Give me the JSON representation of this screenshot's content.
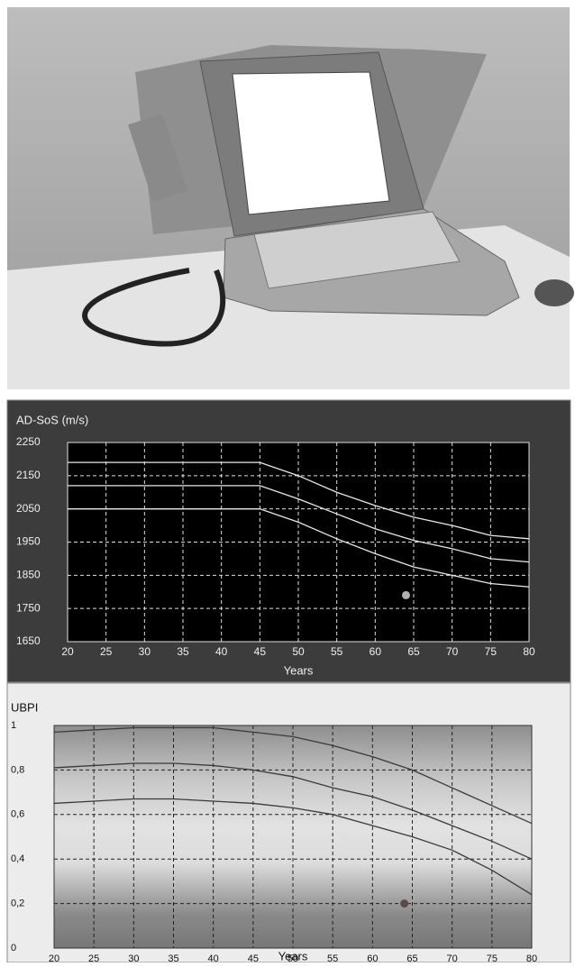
{
  "chart_data": [
    {
      "type": "line",
      "title": "AD-SoS (m/s)",
      "x_label": "Years",
      "x": [
        20,
        25,
        30,
        35,
        40,
        45,
        50,
        55,
        60,
        65,
        70,
        75,
        80
      ],
      "series": [
        {
          "color": "#e8e8e8",
          "values": [
            2190,
            2190,
            2190,
            2190,
            2190,
            2190,
            2150,
            2100,
            2060,
            2025,
            2000,
            1970,
            1960
          ]
        },
        {
          "color": "#e8e8e8",
          "values": [
            2120,
            2120,
            2120,
            2120,
            2120,
            2120,
            2080,
            2035,
            1990,
            1955,
            1930,
            1900,
            1890
          ]
        },
        {
          "color": "#e8e8e8",
          "values": [
            2050,
            2050,
            2050,
            2050,
            2050,
            2050,
            2010,
            1960,
            1915,
            1875,
            1850,
            1825,
            1815
          ]
        }
      ],
      "markers": [
        {
          "x": 64,
          "y": 1790,
          "color": "#b0b0b0"
        }
      ],
      "xlim": [
        20,
        80
      ],
      "xticks": [
        20,
        25,
        30,
        35,
        40,
        45,
        50,
        55,
        60,
        65,
        70,
        75,
        80
      ],
      "ylim": [
        1650,
        2250
      ],
      "yticks": [
        1650,
        1750,
        1850,
        1950,
        2050,
        2150,
        2250
      ],
      "grid": true,
      "grid_color": "#e0e0e0"
    },
    {
      "type": "line",
      "title": "UBPI",
      "x_label": "Years",
      "x": [
        20,
        25,
        30,
        35,
        40,
        45,
        50,
        55,
        60,
        65,
        70,
        75,
        80
      ],
      "series": [
        {
          "color": "#3a3a3a",
          "values": [
            0.97,
            0.98,
            0.99,
            0.99,
            0.99,
            0.97,
            0.95,
            0.91,
            0.86,
            0.8,
            0.72,
            0.64,
            0.56
          ]
        },
        {
          "color": "#3a3a3a",
          "values": [
            0.81,
            0.82,
            0.83,
            0.83,
            0.82,
            0.8,
            0.77,
            0.72,
            0.68,
            0.62,
            0.55,
            0.48,
            0.4
          ]
        },
        {
          "color": "#3a3a3a",
          "values": [
            0.65,
            0.66,
            0.67,
            0.67,
            0.66,
            0.65,
            0.63,
            0.6,
            0.55,
            0.5,
            0.44,
            0.35,
            0.24
          ]
        }
      ],
      "markers": [
        {
          "x": 64,
          "y": 0.2,
          "color": "#5a4a4a"
        }
      ],
      "xlim": [
        20,
        80
      ],
      "xticks": [
        20,
        25,
        30,
        35,
        40,
        45,
        50,
        55,
        60,
        65,
        70,
        75,
        80
      ],
      "ylim": [
        0,
        1
      ],
      "yticks": [
        0,
        {
          "value": 0.2,
          "label": "0,2"
        },
        {
          "value": 0.4,
          "label": "0,4"
        },
        {
          "value": 0.6,
          "label": "0,6"
        },
        {
          "value": 0.8,
          "label": "0,8"
        },
        1
      ],
      "grid": true,
      "grid_color": "#222222"
    }
  ]
}
